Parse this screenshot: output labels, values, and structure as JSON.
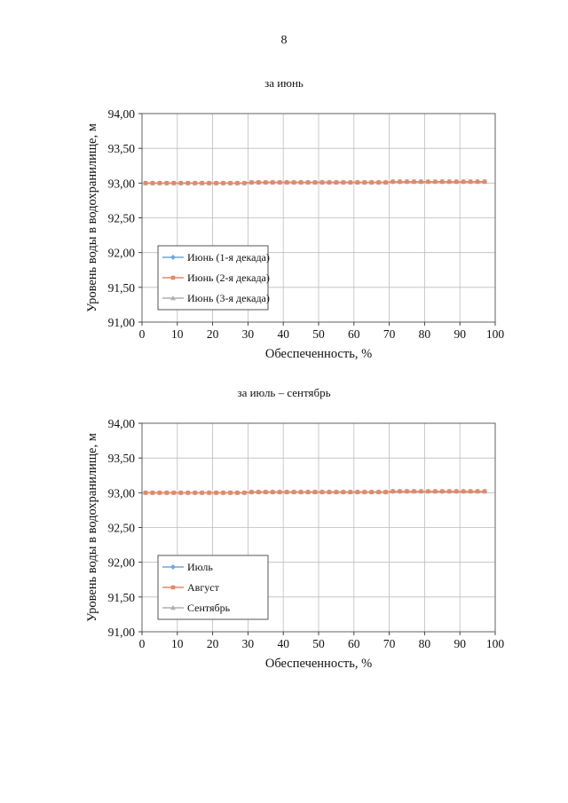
{
  "page": {
    "number": "8"
  },
  "chart_data": [
    {
      "type": "line",
      "title": "за июнь",
      "xlabel": "Обеспеченность, %",
      "ylabel": "Уровень воды в водохранилище, м",
      "xlim": [
        0,
        100
      ],
      "ylim": [
        91.0,
        94.0
      ],
      "xticks": [
        0,
        10,
        20,
        30,
        40,
        50,
        60,
        70,
        80,
        90,
        100
      ],
      "xtick_labels": [
        "0",
        "10",
        "20",
        "30",
        "40",
        "50",
        "60",
        "70",
        "80",
        "90",
        "100"
      ],
      "yticks": [
        91.0,
        91.5,
        92.0,
        92.5,
        93.0,
        93.5,
        94.0
      ],
      "ytick_labels": [
        "91,00",
        "91,50",
        "92,00",
        "92,50",
        "93,00",
        "93,50",
        "94,00"
      ],
      "grid": true,
      "legend_position": "lower-left",
      "x": [
        1,
        3,
        5,
        7,
        9,
        11,
        13,
        15,
        17,
        19,
        21,
        23,
        25,
        27,
        29,
        31,
        33,
        35,
        37,
        39,
        41,
        43,
        45,
        47,
        49,
        51,
        53,
        55,
        57,
        59,
        61,
        63,
        65,
        67,
        69,
        71,
        73,
        75,
        77,
        79,
        81,
        83,
        85,
        87,
        89,
        91,
        93,
        95,
        97
      ],
      "series": [
        {
          "name": "Июнь (1-я декада)",
          "color": "#6fa8dc",
          "marker": "diamond",
          "values": [
            93.0,
            93.0,
            93.0,
            93.0,
            93.0,
            93.0,
            93.0,
            93.0,
            93.0,
            93.0,
            93.0,
            93.0,
            93.0,
            93.0,
            93.0,
            93.01,
            93.01,
            93.01,
            93.01,
            93.01,
            93.01,
            93.01,
            93.01,
            93.01,
            93.01,
            93.01,
            93.01,
            93.01,
            93.01,
            93.01,
            93.01,
            93.01,
            93.01,
            93.01,
            93.01,
            93.02,
            93.02,
            93.02,
            93.02,
            93.02,
            93.02,
            93.02,
            93.02,
            93.02,
            93.02,
            93.02,
            93.02,
            93.02,
            93.02
          ]
        },
        {
          "name": "Июнь (2-я декада)",
          "color": "#e08a6a",
          "marker": "square",
          "values": [
            93.0,
            93.0,
            93.0,
            93.0,
            93.0,
            93.0,
            93.0,
            93.0,
            93.0,
            93.0,
            93.0,
            93.0,
            93.0,
            93.0,
            93.0,
            93.01,
            93.01,
            93.01,
            93.01,
            93.01,
            93.01,
            93.01,
            93.01,
            93.01,
            93.01,
            93.01,
            93.01,
            93.01,
            93.01,
            93.01,
            93.01,
            93.01,
            93.01,
            93.01,
            93.01,
            93.02,
            93.02,
            93.02,
            93.02,
            93.02,
            93.02,
            93.02,
            93.02,
            93.02,
            93.02,
            93.02,
            93.02,
            93.02,
            93.02
          ]
        },
        {
          "name": "Июнь (3-я декада)",
          "color": "#b0b0b0",
          "marker": "triangle",
          "values": [
            93.0,
            93.0,
            93.0,
            93.0,
            93.0,
            93.0,
            93.0,
            93.0,
            93.0,
            93.0,
            93.0,
            93.0,
            93.0,
            93.0,
            93.0,
            93.01,
            93.01,
            93.01,
            93.01,
            93.01,
            93.01,
            93.01,
            93.01,
            93.01,
            93.01,
            93.01,
            93.01,
            93.01,
            93.01,
            93.01,
            93.01,
            93.01,
            93.01,
            93.01,
            93.01,
            93.02,
            93.02,
            93.02,
            93.02,
            93.02,
            93.02,
            93.02,
            93.02,
            93.02,
            93.02,
            93.02,
            93.02,
            93.02,
            93.02
          ]
        }
      ]
    },
    {
      "type": "line",
      "title": "за июль – сентябрь",
      "xlabel": "Обеспеченность, %",
      "ylabel": "Уровень воды в водохранилище, м",
      "xlim": [
        0,
        100
      ],
      "ylim": [
        91.0,
        94.0
      ],
      "xticks": [
        0,
        10,
        20,
        30,
        40,
        50,
        60,
        70,
        80,
        90,
        100
      ],
      "xtick_labels": [
        "0",
        "10",
        "20",
        "30",
        "40",
        "50",
        "60",
        "70",
        "80",
        "90",
        "100"
      ],
      "yticks": [
        91.0,
        91.5,
        92.0,
        92.5,
        93.0,
        93.5,
        94.0
      ],
      "ytick_labels": [
        "91,00",
        "91,50",
        "92,00",
        "92,50",
        "93,00",
        "93,50",
        "94,00"
      ],
      "grid": true,
      "legend_position": "lower-left",
      "x": [
        1,
        3,
        5,
        7,
        9,
        11,
        13,
        15,
        17,
        19,
        21,
        23,
        25,
        27,
        29,
        31,
        33,
        35,
        37,
        39,
        41,
        43,
        45,
        47,
        49,
        51,
        53,
        55,
        57,
        59,
        61,
        63,
        65,
        67,
        69,
        71,
        73,
        75,
        77,
        79,
        81,
        83,
        85,
        87,
        89,
        91,
        93,
        95,
        97
      ],
      "series": [
        {
          "name": "Июль",
          "color": "#6fa8dc",
          "marker": "diamond",
          "values": [
            93.0,
            93.0,
            93.0,
            93.0,
            93.0,
            93.0,
            93.0,
            93.0,
            93.0,
            93.0,
            93.0,
            93.0,
            93.0,
            93.0,
            93.0,
            93.01,
            93.01,
            93.01,
            93.01,
            93.01,
            93.01,
            93.01,
            93.01,
            93.01,
            93.01,
            93.01,
            93.01,
            93.01,
            93.01,
            93.01,
            93.01,
            93.01,
            93.01,
            93.01,
            93.01,
            93.02,
            93.02,
            93.02,
            93.02,
            93.02,
            93.02,
            93.02,
            93.02,
            93.02,
            93.02,
            93.02,
            93.02,
            93.02,
            93.02
          ]
        },
        {
          "name": "Август",
          "color": "#e08a6a",
          "marker": "square",
          "values": [
            93.0,
            93.0,
            93.0,
            93.0,
            93.0,
            93.0,
            93.0,
            93.0,
            93.0,
            93.0,
            93.0,
            93.0,
            93.0,
            93.0,
            93.0,
            93.01,
            93.01,
            93.01,
            93.01,
            93.01,
            93.01,
            93.01,
            93.01,
            93.01,
            93.01,
            93.01,
            93.01,
            93.01,
            93.01,
            93.01,
            93.01,
            93.01,
            93.01,
            93.01,
            93.01,
            93.02,
            93.02,
            93.02,
            93.02,
            93.02,
            93.02,
            93.02,
            93.02,
            93.02,
            93.02,
            93.02,
            93.02,
            93.02,
            93.02
          ]
        },
        {
          "name": "Сентябрь",
          "color": "#b0b0b0",
          "marker": "triangle",
          "values": [
            93.0,
            93.0,
            93.0,
            93.0,
            93.0,
            93.0,
            93.0,
            93.0,
            93.0,
            93.0,
            93.0,
            93.0,
            93.0,
            93.0,
            93.0,
            93.01,
            93.01,
            93.01,
            93.01,
            93.01,
            93.01,
            93.01,
            93.01,
            93.01,
            93.01,
            93.01,
            93.01,
            93.01,
            93.01,
            93.01,
            93.01,
            93.01,
            93.01,
            93.01,
            93.01,
            93.02,
            93.02,
            93.02,
            93.02,
            93.02,
            93.02,
            93.02,
            93.02,
            93.02,
            93.02,
            93.02,
            93.02,
            93.02,
            93.02
          ]
        }
      ]
    }
  ]
}
